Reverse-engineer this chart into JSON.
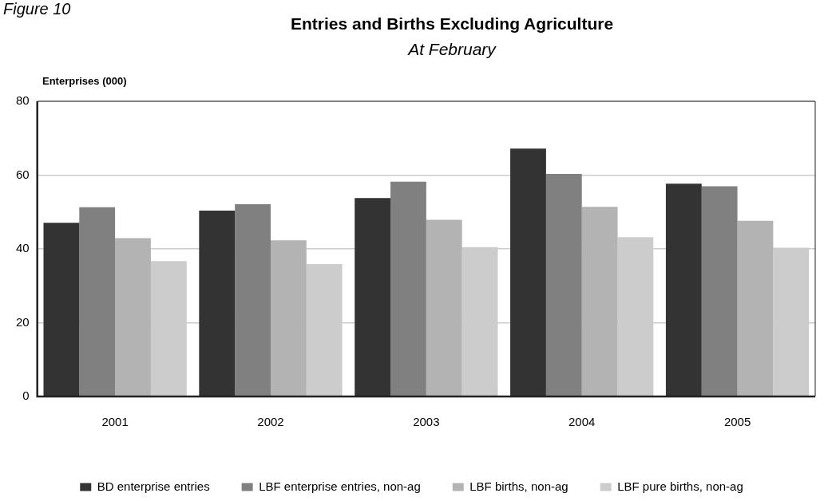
{
  "chart_data": {
    "type": "bar",
    "title": "Entries and Births Excluding Agriculture",
    "subtitle": "At February",
    "ylabel": "Enterprises (000)",
    "annotations": [
      "Figure 10"
    ],
    "categories": [
      "2001",
      "2002",
      "2003",
      "2004",
      "2005"
    ],
    "series": [
      {
        "name": "BD enterprise entries",
        "color": "#333333",
        "values": [
          47.1,
          50.4,
          53.8,
          67.2,
          57.7
        ]
      },
      {
        "name": "LBF enterprise entries, non-ag",
        "color": "#808080",
        "values": [
          51.3,
          52.1,
          58.2,
          60.3,
          57.0
        ]
      },
      {
        "name": "LBF births, non-ag",
        "color": "#b3b3b3",
        "values": [
          42.9,
          42.3,
          47.9,
          51.4,
          47.6
        ]
      },
      {
        "name": "LBF pure births, non-ag",
        "color": "#cccccc",
        "values": [
          36.7,
          35.9,
          40.5,
          43.2,
          40.3
        ]
      }
    ],
    "ylim": [
      0,
      80
    ],
    "yticks": [
      0,
      20,
      40,
      60,
      80
    ],
    "grid": "y",
    "legend": "bottom"
  }
}
